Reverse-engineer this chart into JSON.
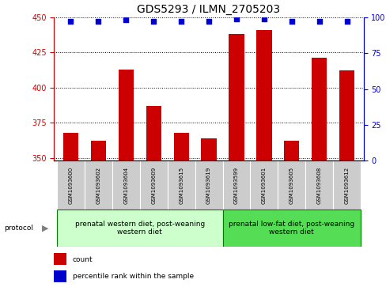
{
  "title": "GDS5293 / ILMN_2705203",
  "samples": [
    "GSM1093600",
    "GSM1093602",
    "GSM1093604",
    "GSM1093609",
    "GSM1093615",
    "GSM1093619",
    "GSM1093599",
    "GSM1093601",
    "GSM1093605",
    "GSM1093608",
    "GSM1093612"
  ],
  "counts": [
    368,
    362,
    413,
    387,
    368,
    364,
    438,
    441,
    362,
    421,
    412
  ],
  "percentiles": [
    97,
    97,
    98,
    97,
    97,
    97,
    99,
    99,
    97,
    97,
    97
  ],
  "ylim_left": [
    348,
    450
  ],
  "ylim_right": [
    0,
    100
  ],
  "yticks_left": [
    350,
    375,
    400,
    425,
    450
  ],
  "yticks_right": [
    0,
    25,
    50,
    75,
    100
  ],
  "bar_color": "#cc0000",
  "dot_color": "#0000cc",
  "bar_width": 0.55,
  "group1_label": "prenatal western diet, post-weaning\nwestern diet",
  "group2_label": "prenatal low-fat diet, post-weaning\nwestern diet",
  "group1_count": 6,
  "group2_count": 5,
  "group1_bg": "#ccffcc",
  "group2_bg": "#55dd55",
  "sample_bg": "#cccccc",
  "legend_count_label": "count",
  "legend_pct_label": "percentile rank within the sample",
  "protocol_label": "protocol",
  "title_fontsize": 10,
  "tick_fontsize": 7,
  "sample_fontsize": 5,
  "group_fontsize": 6.5,
  "legend_fontsize": 6.5
}
